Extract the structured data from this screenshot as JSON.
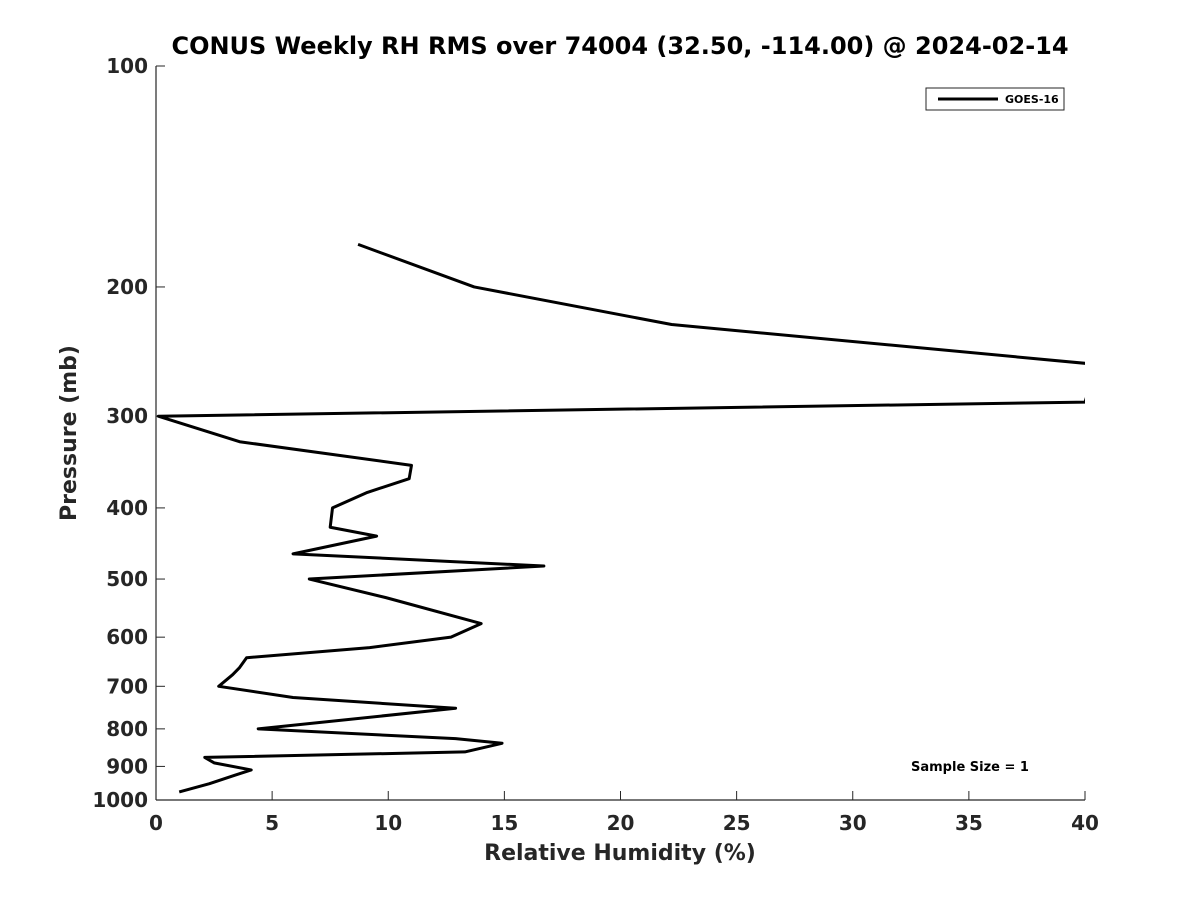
{
  "chart_data": {
    "type": "line",
    "title": "CONUS Weekly RH RMS over 74004 (32.50, -114.00) @ 2024-02-14",
    "xlabel": "Relative Humidity (%)",
    "ylabel": "Pressure (mb)",
    "xlim": [
      0,
      40
    ],
    "ylim": [
      100,
      1000
    ],
    "y_scale": "log",
    "y_reversed": true,
    "xticks": [
      0,
      5,
      10,
      15,
      20,
      25,
      30,
      35,
      40
    ],
    "yticks": [
      100,
      200,
      300,
      400,
      500,
      600,
      700,
      800,
      900,
      1000
    ],
    "grid": false,
    "legend_position": "top-right",
    "line_color": "#000000",
    "annotation": "Sample Size = 1",
    "series": [
      {
        "name": "GOES-16",
        "points": [
          {
            "x": 8.7,
            "y": 175
          },
          {
            "x": 13.7,
            "y": 200
          },
          {
            "x": 22.2,
            "y": 225
          },
          {
            "x": 40.5,
            "y": 255
          },
          {
            "x": 40.0,
            "y": 287
          },
          {
            "x": 0.1,
            "y": 300
          },
          {
            "x": 3.6,
            "y": 325
          },
          {
            "x": 11.0,
            "y": 350
          },
          {
            "x": 10.9,
            "y": 365
          },
          {
            "x": 9.1,
            "y": 381
          },
          {
            "x": 7.6,
            "y": 400
          },
          {
            "x": 7.5,
            "y": 425
          },
          {
            "x": 9.5,
            "y": 437
          },
          {
            "x": 5.9,
            "y": 462
          },
          {
            "x": 16.7,
            "y": 480
          },
          {
            "x": 6.6,
            "y": 500
          },
          {
            "x": 9.9,
            "y": 530
          },
          {
            "x": 14.0,
            "y": 575
          },
          {
            "x": 12.7,
            "y": 600
          },
          {
            "x": 9.2,
            "y": 620
          },
          {
            "x": 3.9,
            "y": 640
          },
          {
            "x": 3.6,
            "y": 660
          },
          {
            "x": 3.3,
            "y": 675
          },
          {
            "x": 2.7,
            "y": 700
          },
          {
            "x": 5.9,
            "y": 725
          },
          {
            "x": 12.9,
            "y": 750
          },
          {
            "x": 4.4,
            "y": 800
          },
          {
            "x": 12.9,
            "y": 825
          },
          {
            "x": 14.9,
            "y": 837
          },
          {
            "x": 13.3,
            "y": 860
          },
          {
            "x": 2.1,
            "y": 875
          },
          {
            "x": 2.5,
            "y": 890
          },
          {
            "x": 4.1,
            "y": 910
          },
          {
            "x": 3.4,
            "y": 925
          },
          {
            "x": 2.3,
            "y": 950
          },
          {
            "x": 1.0,
            "y": 975
          }
        ]
      }
    ]
  }
}
